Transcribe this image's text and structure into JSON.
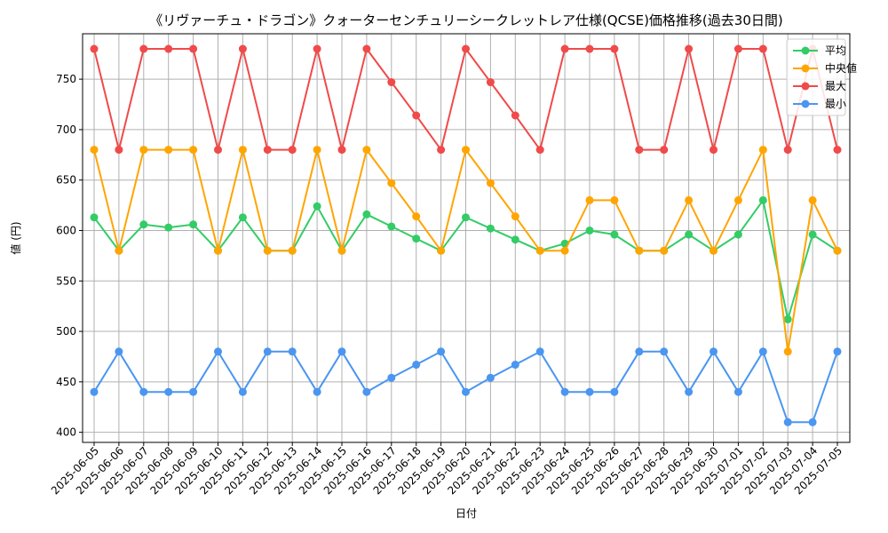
{
  "chart_data": {
    "type": "line",
    "title": "《リヴァーチュ・ドラゴン》クォーターセンチュリーシークレットレア仕様(QCSE)価格推移(過去30日間)",
    "xlabel": "日付",
    "ylabel": "値 (円)",
    "ylim": [
      390,
      795
    ],
    "yticks": [
      400,
      450,
      500,
      550,
      600,
      650,
      700,
      750
    ],
    "grid": true,
    "legend_position": "top-right",
    "categories": [
      "2025-06-05",
      "2025-06-06",
      "2025-06-07",
      "2025-06-08",
      "2025-06-09",
      "2025-06-10",
      "2025-06-11",
      "2025-06-12",
      "2025-06-13",
      "2025-06-14",
      "2025-06-15",
      "2025-06-16",
      "2025-06-17",
      "2025-06-18",
      "2025-06-19",
      "2025-06-20",
      "2025-06-21",
      "2025-06-22",
      "2025-06-23",
      "2025-06-24",
      "2025-06-25",
      "2025-06-26",
      "2025-06-27",
      "2025-06-28",
      "2025-06-29",
      "2025-06-30",
      "2025-07-01",
      "2025-07-02",
      "2025-07-03",
      "2025-07-04",
      "2025-07-05"
    ],
    "series": [
      {
        "name": "平均",
        "color": "#33cc66",
        "values": [
          613,
          580,
          606,
          603,
          606,
          580,
          613,
          580,
          580,
          624,
          580,
          616,
          604,
          592,
          580,
          613,
          602,
          591,
          580,
          587,
          600,
          596,
          580,
          580,
          596,
          580,
          596,
          630,
          512,
          596,
          580
        ]
      },
      {
        "name": "中央値",
        "color": "#ffa500",
        "values": [
          680,
          580,
          680,
          680,
          680,
          580,
          680,
          580,
          580,
          680,
          580,
          680,
          647,
          614,
          580,
          680,
          647,
          614,
          580,
          580,
          630,
          630,
          580,
          580,
          630,
          580,
          630,
          680,
          480,
          630,
          580
        ]
      },
      {
        "name": "最大",
        "color": "#f04a4a",
        "values": [
          780,
          680,
          780,
          780,
          780,
          680,
          780,
          680,
          680,
          780,
          680,
          780,
          747,
          714,
          680,
          780,
          747,
          714,
          680,
          780,
          780,
          780,
          680,
          680,
          780,
          680,
          780,
          780,
          680,
          780,
          680
        ]
      },
      {
        "name": "最小",
        "color": "#4a96f0",
        "values": [
          440,
          480,
          440,
          440,
          440,
          480,
          440,
          480,
          480,
          440,
          480,
          440,
          454,
          467,
          480,
          440,
          454,
          467,
          480,
          440,
          440,
          440,
          480,
          480,
          440,
          480,
          440,
          480,
          410,
          410,
          480
        ]
      }
    ]
  }
}
